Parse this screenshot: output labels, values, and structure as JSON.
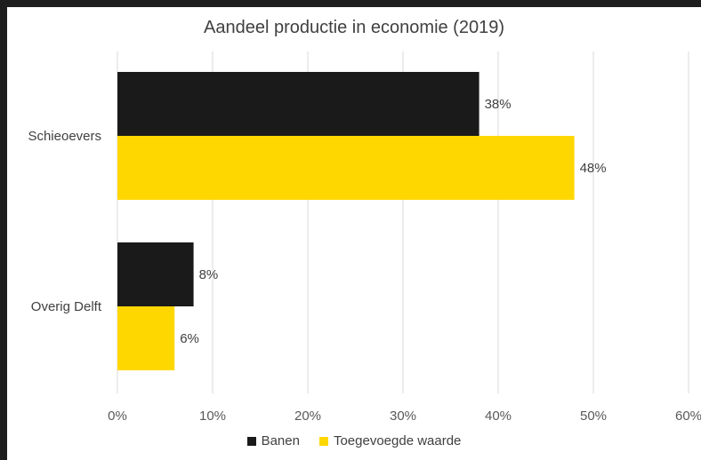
{
  "chart_data": {
    "type": "bar",
    "orientation": "horizontal",
    "title": "Aandeel productie in economie (2019)",
    "categories": [
      "Schieoevers",
      "Overig Delft"
    ],
    "series": [
      {
        "name": "Banen",
        "values": [
          38,
          8
        ],
        "labels": [
          "38%",
          "8%"
        ],
        "color": "#1a1a1a"
      },
      {
        "name": "Toegevoegde waarde",
        "values": [
          48,
          6
        ],
        "labels": [
          "48%",
          "6%"
        ],
        "color": "#ffd700"
      }
    ],
    "xlim": [
      0,
      60
    ],
    "x_ticks": [
      "0%",
      "10%",
      "20%",
      "30%",
      "40%",
      "50%",
      "60%"
    ],
    "grid": true,
    "legend_position": "bottom"
  }
}
